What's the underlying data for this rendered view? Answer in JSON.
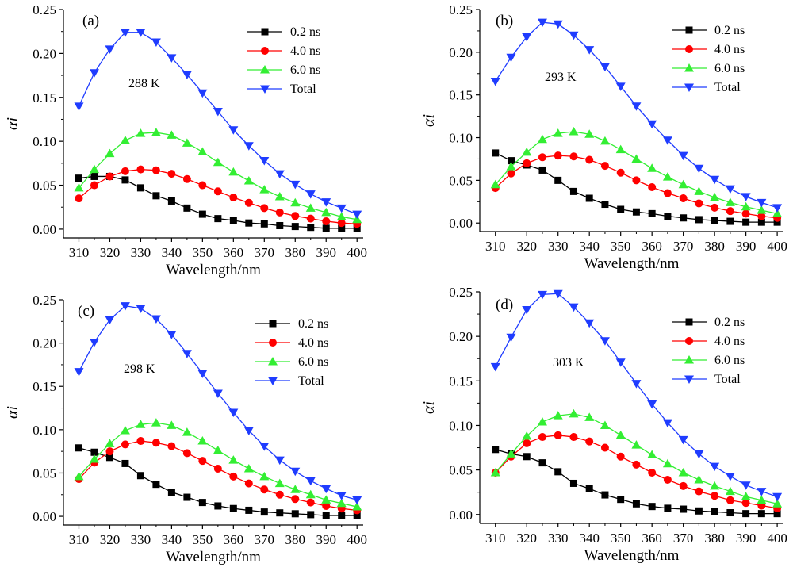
{
  "colors": {
    "0.2 ns": "#000000",
    "4.0 ns": "#ff0000",
    "6.0 ns": "#33ee33",
    "Total": "#1f3cff"
  },
  "chart_data": [
    {
      "type": "line",
      "panel": "(a)",
      "annotation": "288 K",
      "xlabel": "Wavelength/nm",
      "ylabel": "αi",
      "xlim": [
        305,
        402
      ],
      "ylim": [
        -0.01,
        0.25
      ],
      "xticks": [
        310,
        320,
        330,
        340,
        350,
        360,
        370,
        380,
        390,
        400
      ],
      "yticks": [
        "0.00",
        "0.05",
        "0.10",
        "0.15",
        "0.20",
        "0.25"
      ],
      "legend_position": "top-right",
      "x": [
        310,
        315,
        320,
        325,
        330,
        335,
        340,
        345,
        350,
        355,
        360,
        365,
        370,
        375,
        380,
        385,
        390,
        395,
        400
      ],
      "series": [
        {
          "name": "0.2 ns",
          "marker": "square",
          "values": [
            0.058,
            0.06,
            0.06,
            0.056,
            0.047,
            0.038,
            0.032,
            0.024,
            0.017,
            0.012,
            0.01,
            0.007,
            0.006,
            0.004,
            0.003,
            0.002,
            0.001,
            0.001,
            0.001
          ]
        },
        {
          "name": "4.0 ns",
          "marker": "circle",
          "values": [
            0.035,
            0.05,
            0.06,
            0.066,
            0.068,
            0.067,
            0.063,
            0.057,
            0.05,
            0.043,
            0.036,
            0.03,
            0.024,
            0.019,
            0.015,
            0.012,
            0.009,
            0.007,
            0.006
          ]
        },
        {
          "name": "6.0 ns",
          "marker": "triangle-up",
          "values": [
            0.047,
            0.068,
            0.086,
            0.101,
            0.109,
            0.11,
            0.107,
            0.098,
            0.088,
            0.076,
            0.065,
            0.055,
            0.045,
            0.037,
            0.03,
            0.024,
            0.019,
            0.014,
            0.011
          ]
        },
        {
          "name": "Total",
          "marker": "triangle-down",
          "values": [
            0.14,
            0.178,
            0.205,
            0.224,
            0.224,
            0.213,
            0.195,
            0.176,
            0.155,
            0.134,
            0.113,
            0.095,
            0.078,
            0.063,
            0.051,
            0.04,
            0.031,
            0.024,
            0.017
          ]
        }
      ]
    },
    {
      "type": "line",
      "panel": "(b)",
      "annotation": "293 K",
      "xlabel": "Wavelength/nm",
      "ylabel": "αi",
      "xlim": [
        305,
        402
      ],
      "ylim": [
        -0.01,
        0.25
      ],
      "xticks": [
        310,
        320,
        330,
        340,
        350,
        360,
        370,
        380,
        390,
        400
      ],
      "yticks": [
        "0.00",
        "0.05",
        "0.10",
        "0.15",
        "0.20",
        "0.25"
      ],
      "legend_position": "top-right",
      "x": [
        310,
        315,
        320,
        325,
        330,
        335,
        340,
        345,
        350,
        355,
        360,
        365,
        370,
        375,
        380,
        385,
        390,
        395,
        400
      ],
      "series": [
        {
          "name": "0.2 ns",
          "marker": "square",
          "values": [
            0.082,
            0.073,
            0.068,
            0.062,
            0.05,
            0.037,
            0.029,
            0.022,
            0.016,
            0.013,
            0.011,
            0.008,
            0.006,
            0.004,
            0.003,
            0.002,
            0.001,
            0.001,
            0.001
          ]
        },
        {
          "name": "4.0 ns",
          "marker": "circle",
          "values": [
            0.041,
            0.058,
            0.07,
            0.077,
            0.079,
            0.078,
            0.074,
            0.067,
            0.059,
            0.05,
            0.042,
            0.035,
            0.029,
            0.023,
            0.018,
            0.014,
            0.011,
            0.008,
            0.006
          ]
        },
        {
          "name": "6.0 ns",
          "marker": "triangle-up",
          "values": [
            0.045,
            0.066,
            0.083,
            0.098,
            0.105,
            0.107,
            0.104,
            0.096,
            0.086,
            0.075,
            0.064,
            0.054,
            0.045,
            0.037,
            0.03,
            0.024,
            0.019,
            0.015,
            0.011
          ]
        },
        {
          "name": "Total",
          "marker": "triangle-down",
          "values": [
            0.166,
            0.194,
            0.218,
            0.235,
            0.233,
            0.22,
            0.203,
            0.183,
            0.16,
            0.137,
            0.116,
            0.097,
            0.079,
            0.064,
            0.051,
            0.04,
            0.031,
            0.024,
            0.018
          ]
        }
      ]
    },
    {
      "type": "line",
      "panel": "(c)",
      "annotation": "298 K",
      "xlabel": "Wavelength/nm",
      "ylabel": "αi",
      "xlim": [
        305,
        402
      ],
      "ylim": [
        -0.01,
        0.25
      ],
      "xticks": [
        310,
        320,
        330,
        340,
        350,
        360,
        370,
        380,
        390,
        400
      ],
      "yticks": [
        "0.00",
        "0.05",
        "0.10",
        "0.15",
        "0.20",
        "0.25"
      ],
      "legend_position": "top-right",
      "x": [
        310,
        315,
        320,
        325,
        330,
        335,
        340,
        345,
        350,
        355,
        360,
        365,
        370,
        375,
        380,
        385,
        390,
        395,
        400
      ],
      "series": [
        {
          "name": "0.2 ns",
          "marker": "square",
          "values": [
            0.079,
            0.074,
            0.068,
            0.061,
            0.047,
            0.037,
            0.028,
            0.022,
            0.016,
            0.012,
            0.009,
            0.007,
            0.005,
            0.004,
            0.003,
            0.002,
            0.001,
            0.001,
            0.001
          ]
        },
        {
          "name": "4.0 ns",
          "marker": "circle",
          "values": [
            0.043,
            0.062,
            0.075,
            0.083,
            0.087,
            0.085,
            0.081,
            0.073,
            0.064,
            0.055,
            0.046,
            0.038,
            0.031,
            0.025,
            0.02,
            0.016,
            0.012,
            0.009,
            0.007
          ]
        },
        {
          "name": "6.0 ns",
          "marker": "triangle-up",
          "values": [
            0.046,
            0.066,
            0.084,
            0.099,
            0.106,
            0.108,
            0.105,
            0.097,
            0.087,
            0.076,
            0.065,
            0.055,
            0.046,
            0.038,
            0.031,
            0.025,
            0.019,
            0.015,
            0.011
          ]
        },
        {
          "name": "Total",
          "marker": "triangle-down",
          "values": [
            0.167,
            0.201,
            0.227,
            0.243,
            0.24,
            0.228,
            0.21,
            0.188,
            0.165,
            0.142,
            0.12,
            0.099,
            0.081,
            0.065,
            0.052,
            0.041,
            0.032,
            0.024,
            0.019
          ]
        }
      ]
    },
    {
      "type": "line",
      "panel": "(d)",
      "annotation": "303 K",
      "xlabel": "Wavelength/nm",
      "ylabel": "αi",
      "xlim": [
        305,
        402
      ],
      "ylim": [
        -0.01,
        0.25
      ],
      "xticks": [
        310,
        320,
        330,
        340,
        350,
        360,
        370,
        380,
        390,
        400
      ],
      "yticks": [
        "0.00",
        "0.05",
        "0.10",
        "0.15",
        "0.20",
        "0.25"
      ],
      "legend_position": "top-right",
      "x": [
        310,
        315,
        320,
        325,
        330,
        335,
        340,
        345,
        350,
        355,
        360,
        365,
        370,
        375,
        380,
        385,
        390,
        395,
        400
      ],
      "series": [
        {
          "name": "0.2 ns",
          "marker": "square",
          "values": [
            0.073,
            0.068,
            0.065,
            0.058,
            0.048,
            0.035,
            0.029,
            0.022,
            0.017,
            0.012,
            0.009,
            0.007,
            0.006,
            0.004,
            0.003,
            0.002,
            0.001,
            0.001,
            0.001
          ]
        },
        {
          "name": "4.0 ns",
          "marker": "circle",
          "values": [
            0.047,
            0.065,
            0.08,
            0.087,
            0.089,
            0.087,
            0.082,
            0.075,
            0.065,
            0.056,
            0.047,
            0.039,
            0.032,
            0.026,
            0.021,
            0.016,
            0.013,
            0.01,
            0.007
          ]
        },
        {
          "name": "6.0 ns",
          "marker": "triangle-up",
          "values": [
            0.047,
            0.068,
            0.088,
            0.104,
            0.111,
            0.113,
            0.109,
            0.1,
            0.089,
            0.078,
            0.067,
            0.057,
            0.047,
            0.039,
            0.032,
            0.026,
            0.02,
            0.016,
            0.012
          ]
        },
        {
          "name": "Total",
          "marker": "triangle-down",
          "values": [
            0.166,
            0.199,
            0.23,
            0.247,
            0.248,
            0.233,
            0.215,
            0.195,
            0.171,
            0.147,
            0.124,
            0.103,
            0.084,
            0.068,
            0.054,
            0.043,
            0.033,
            0.026,
            0.02
          ]
        }
      ]
    }
  ]
}
